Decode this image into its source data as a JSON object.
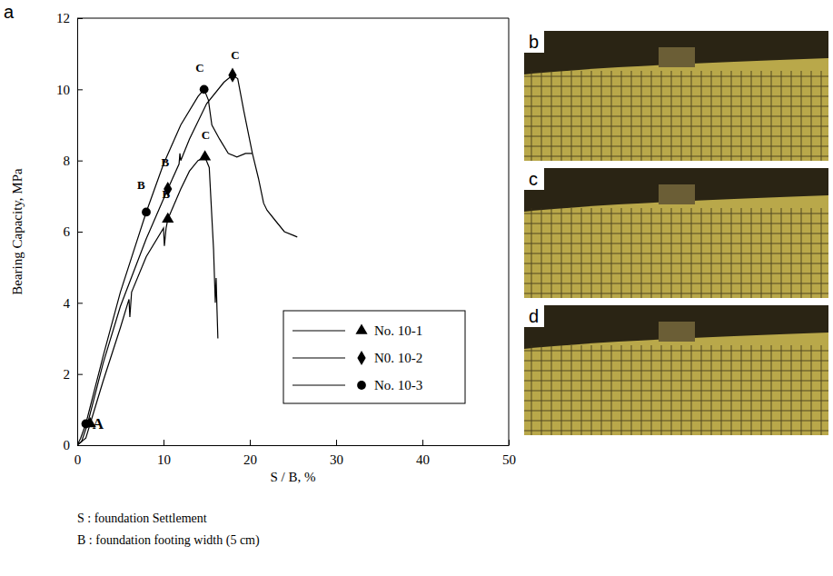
{
  "chart_data": {
    "type": "line",
    "panel": "a",
    "x_label": "S / B, %",
    "y_label": "Bearing Capacity, MPa",
    "xlim": [
      0,
      50
    ],
    "xticks": [
      0,
      10,
      20,
      30,
      40,
      50
    ],
    "ylim": [
      0,
      12
    ],
    "yticks": [
      0,
      2,
      4,
      6,
      8,
      10,
      12
    ],
    "legend": "lower right",
    "series": [
      {
        "name": "No. 10-1",
        "color": "#000000",
        "marker": "triangle",
        "line_style": "solid",
        "x": [
          0,
          1,
          1.5,
          3,
          5,
          6,
          6.1,
          6.3,
          8,
          10,
          10.1,
          10.3,
          10.5,
          12,
          13,
          14,
          14.8,
          15.3,
          15.8,
          16,
          16.1,
          16.2,
          16.3
        ],
        "values": [
          0,
          0.2,
          0.6,
          1.8,
          3.3,
          4.1,
          3.6,
          4.3,
          5.3,
          6.1,
          5.6,
          6.1,
          6.35,
          7.2,
          7.7,
          8.0,
          8.1,
          7.8,
          5.5,
          4.0,
          4.7,
          3.8,
          3.0
        ],
        "points_x": [
          1.5,
          10.5,
          14.8
        ],
        "points": [
          0.6,
          6.35,
          8.1
        ]
      },
      {
        "name": "N0. 10-2",
        "color": "#000000",
        "marker": "diamond",
        "line_style": "solid",
        "x": [
          0,
          0.5,
          1.2,
          3,
          5,
          8,
          10.5,
          11.8,
          11.9,
          12,
          13,
          15,
          17,
          18,
          18.6,
          19.3,
          20.3,
          21,
          21.6,
          22,
          23,
          24,
          25,
          25.5
        ],
        "values": [
          0,
          0.1,
          0.6,
          2.3,
          3.9,
          5.8,
          7.2,
          7.9,
          8.2,
          8.0,
          8.6,
          9.6,
          10.2,
          10.4,
          10.3,
          9.4,
          8.2,
          7.5,
          6.8,
          6.6,
          6.3,
          6.0,
          5.9,
          5.85
        ],
        "points_x": [
          10.5,
          18
        ],
        "points": [
          7.2,
          10.4
        ]
      },
      {
        "name": "No. 10-3",
        "color": "#000000",
        "marker": "circle",
        "line_style": "solid",
        "x": [
          0,
          0.4,
          1,
          3,
          5,
          8,
          10,
          12,
          14,
          14.7,
          15.2,
          15.6,
          16.5,
          17.5,
          18.5,
          19.5,
          20.3
        ],
        "values": [
          0,
          0.2,
          0.6,
          2.5,
          4.3,
          6.55,
          7.9,
          9.0,
          9.8,
          10.0,
          9.7,
          9.0,
          8.6,
          8.2,
          8.1,
          8.2,
          8.2
        ],
        "points_x": [
          1,
          8,
          14.7
        ],
        "points": [
          0.6,
          6.55,
          10.0
        ]
      }
    ],
    "annotations": [
      {
        "text": "A",
        "x": 2.4,
        "y": 0.45
      },
      {
        "text": "B",
        "x": 7.4,
        "y": 7.2
      },
      {
        "text": "B",
        "x": 10.2,
        "y": 7.85
      },
      {
        "text": "B",
        "x": 10.3,
        "y": 6.95
      },
      {
        "text": "C",
        "x": 14.2,
        "y": 10.5
      },
      {
        "text": "C",
        "x": 18.3,
        "y": 10.85
      },
      {
        "text": "C",
        "x": 14.9,
        "y": 8.6
      }
    ],
    "caption": [
      "S : foundation Settlement",
      "B : foundation footing width (5 cm)"
    ]
  },
  "photos": [
    {
      "label": "b"
    },
    {
      "label": "c"
    },
    {
      "label": "d"
    }
  ]
}
